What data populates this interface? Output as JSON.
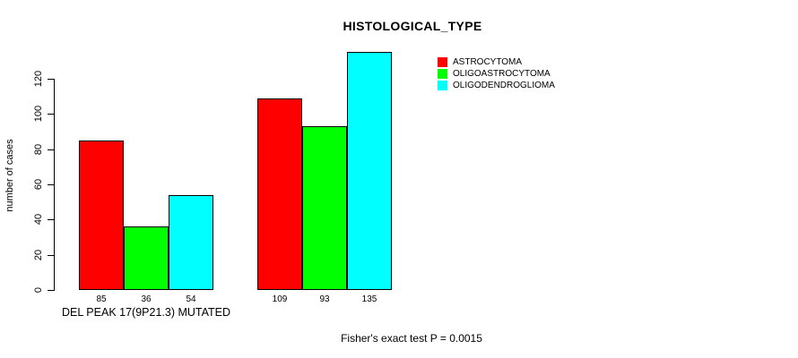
{
  "chart_data": {
    "type": "bar",
    "title": "HISTOLOGICAL_TYPE",
    "ylabel": "number of cases",
    "xlabel": "",
    "categories": [
      "DEL PEAK 17(9P21.3) MUTATED",
      ""
    ],
    "series": [
      {
        "name": "ASTROCYTOMA",
        "color": "#FF0000",
        "values": [
          85,
          109
        ]
      },
      {
        "name": "OLIGOASTROCYTOMA",
        "color": "#00FF00",
        "values": [
          36,
          93
        ]
      },
      {
        "name": "OLIGODENDROGLIOMA",
        "color": "#00FFFF",
        "values": [
          54,
          135
        ]
      }
    ],
    "yticks": [
      0,
      20,
      40,
      60,
      80,
      100,
      120
    ],
    "ylim": [
      0,
      135
    ],
    "bar_value_labels": true,
    "grid": false,
    "legend_position": "top-right",
    "footnote": "Fisher's exact test P = 0.0015"
  }
}
